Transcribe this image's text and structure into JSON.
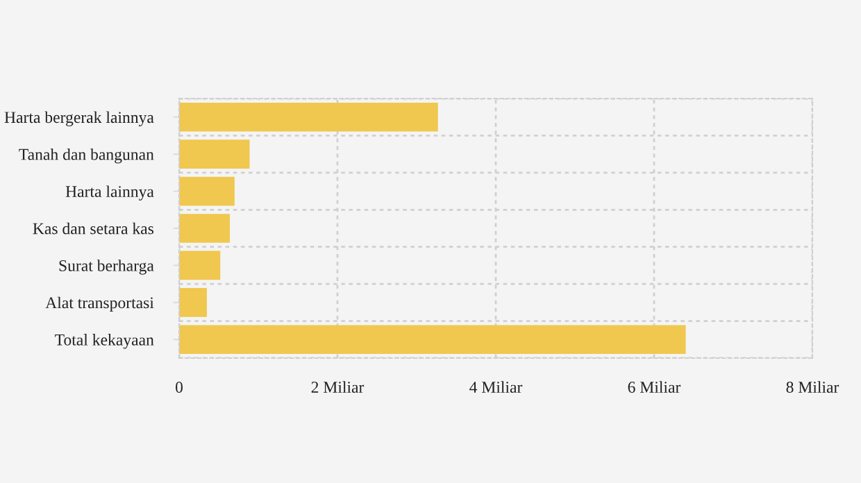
{
  "chart_data": {
    "type": "bar",
    "orientation": "horizontal",
    "categories": [
      "Harta bergerak lainnya",
      "Tanah dan bangunan",
      "Harta lainnya",
      "Kas dan setara kas",
      "Surat berharga",
      "Alat transportasi",
      "Total kekayaan"
    ],
    "values": [
      3.27,
      0.89,
      0.7,
      0.64,
      0.52,
      0.35,
      6.4
    ],
    "color": "#f0c74f",
    "xlim": [
      0,
      8
    ],
    "xticks": [
      0,
      {
        "value": 2,
        "label": "2 Miliar"
      },
      {
        "value": 4,
        "label": "4 Miliar"
      },
      {
        "value": 6,
        "label": "6 Miliar"
      },
      {
        "value": 8,
        "label": "8 Miliar"
      }
    ],
    "grid": true
  }
}
